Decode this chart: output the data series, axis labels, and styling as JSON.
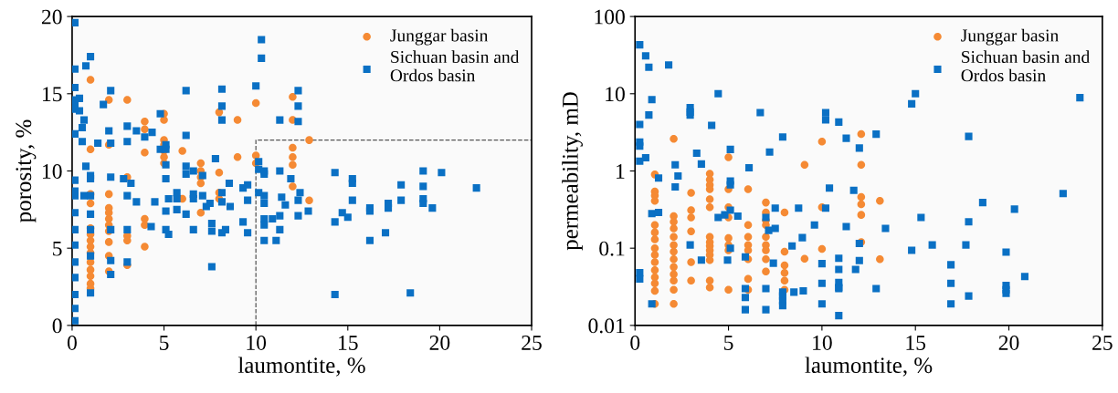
{
  "chart_data": [
    {
      "type": "scatter",
      "xlabel": "laumontite, %",
      "ylabel": "porosity, %",
      "xlim": [
        0,
        25
      ],
      "ylim": [
        0,
        20
      ],
      "xticks": [
        0,
        5,
        10,
        15,
        20,
        25
      ],
      "yticks": [
        0,
        5,
        10,
        15,
        20
      ],
      "grid": false,
      "legend": "top right",
      "series": [
        {
          "name": "Junggar basin",
          "color": "#f58a34",
          "marker": "circle",
          "x": [
            1,
            1,
            1,
            1,
            1,
            1,
            1,
            1,
            1,
            1,
            1,
            1,
            1,
            1,
            2,
            2,
            2,
            2,
            2,
            2,
            2,
            2,
            2,
            2,
            2,
            3,
            3,
            3,
            3,
            3,
            3.95,
            3.95,
            3.95,
            3.95,
            3.95,
            3.95,
            5,
            5,
            5,
            5,
            5,
            5,
            5,
            6,
            6,
            7,
            7,
            7,
            7,
            7,
            8,
            8,
            8,
            8,
            9,
            9,
            10,
            10,
            10,
            12,
            12,
            12,
            12,
            12,
            12,
            12.9,
            12.9
          ],
          "values": [
            15.9,
            11.4,
            8.5,
            7.9,
            6.3,
            5.9,
            5.5,
            5.1,
            4.7,
            4.1,
            3.6,
            3.2,
            2.7,
            2.4,
            14.6,
            11.7,
            8.5,
            7.6,
            7.3,
            6.9,
            6.5,
            6.1,
            5.4,
            4.5,
            3.5,
            14.6,
            9.6,
            5.8,
            5.5,
            3.9,
            13.2,
            12.7,
            11.2,
            6.9,
            6.5,
            5.1,
            13.7,
            13.3,
            12.0,
            11.7,
            11.3,
            10.9,
            10.5,
            11.3,
            8.2,
            10.5,
            10.0,
            9.6,
            9.2,
            7.3,
            13.8,
            9.9,
            8.6,
            8.2,
            13.3,
            10.9,
            14.4,
            11.0,
            10.5,
            14.8,
            13.3,
            11.5,
            10.9,
            10.4,
            9.0,
            12.0,
            8.1
          ]
        },
        {
          "name": "Sichuan basin and Ordos basin",
          "color": "#0a70c4",
          "marker": "square",
          "x": [
            0.15,
            0.15,
            0.15,
            0.15,
            0.15,
            0.15,
            0.15,
            0.15,
            0.15,
            0.15,
            0.15,
            0.15,
            0.15,
            0.15,
            0.15,
            0.15,
            0.15,
            0.15,
            0.4,
            0.4,
            0.55,
            0.55,
            0.65,
            0.65,
            0.75,
            0.75,
            1,
            1,
            1,
            1,
            1,
            1,
            1,
            1,
            1.4,
            1.7,
            2.1,
            2.1,
            2.1,
            2.1,
            2.1,
            2.1,
            2.0,
            2.8,
            3,
            3,
            3,
            3,
            3,
            3.2,
            3.5,
            3.5,
            3.95,
            4.35,
            4.3,
            4.5,
            4.8,
            4.8,
            5.1,
            5.1,
            5.1,
            5.1,
            5.1,
            5.1,
            5.25,
            5.25,
            5.7,
            5.7,
            5.7,
            6.2,
            6.2,
            6.2,
            6.2,
            6.2,
            6.6,
            6.6,
            6.6,
            6.6,
            7.1,
            7.1,
            7.3,
            7.5,
            7.6,
            7.6,
            7.6,
            7.8,
            8.15,
            8.15,
            8.15,
            8.15,
            8.15,
            8.15,
            8.35,
            8.55,
            8.6,
            9.3,
            9.3,
            9.55,
            9.55,
            9.55,
            10.0,
            10.15,
            10.15,
            10.15,
            10.3,
            10.3,
            10.45,
            10.45,
            10.45,
            10.45,
            10.45,
            10.45,
            10.45,
            10.9,
            11.1,
            11.3,
            11.3,
            11.3,
            11.3,
            11.4,
            11.6,
            11.9,
            12.3,
            12.3,
            12.3,
            12.3,
            12.3,
            12.4,
            12.85,
            14.3,
            14.3,
            14.3,
            14.7,
            15.0,
            15.25,
            15.25,
            15.25,
            16.2,
            16.2,
            16.2,
            17.05,
            17.2,
            17.2,
            17.9,
            17.9,
            18.4,
            19.1,
            19.1,
            19.1,
            19.1,
            19.6,
            20.1,
            22.0
          ],
          "values": [
            19.6,
            16.6,
            15.4,
            14.6,
            14.3,
            14.0,
            12.4,
            9.4,
            8.7,
            8.4,
            7.3,
            6.2,
            5.2,
            4.1,
            3.1,
            2.0,
            1.1,
            0.3,
            14.7,
            13.9,
            12.8,
            11.9,
            13.3,
            8.4,
            16.8,
            10.3,
            17.4,
            9.7,
            9.5,
            8.4,
            7.2,
            6.2,
            4.5,
            2.1,
            11.8,
            14.3,
            15.2,
            11.8,
            9.6,
            6.2,
            4.2,
            3.3,
            12.6,
            9.5,
            12.9,
            11.9,
            8.4,
            6.2,
            4.1,
            9.2,
            12.6,
            8.0,
            12.2,
            12.5,
            6.4,
            8.0,
            13.7,
            11.4,
            11.7,
            11.4,
            10.4,
            9.5,
            7.4,
            6.2,
            8.2,
            5.9,
            8.6,
            8.2,
            7.5,
            15.2,
            12.3,
            10.3,
            9.8,
            7.2,
            10.0,
            8.5,
            8.2,
            6.2,
            9.7,
            8.4,
            7.7,
            7.9,
            6.6,
            6.1,
            3.8,
            10.8,
            15.3,
            14.2,
            13.3,
            8.6,
            8.0,
            6.0,
            6.2,
            9.2,
            7.7,
            8.9,
            6.7,
            9.1,
            8.1,
            6.0,
            15.5,
            10.6,
            10.1,
            8.6,
            18.5,
            17.3,
            10.0,
            9.8,
            8.4,
            7.9,
            6.9,
            6.5,
            5.5,
            6.9,
            5.5,
            13.3,
            10.0,
            7.1,
            6.2,
            8.3,
            7.8,
            9.5,
            15.2,
            14.2,
            13.2,
            8.1,
            7.1,
            8.6,
            7.4,
            9.9,
            6.7,
            2.0,
            7.3,
            7.0,
            9.5,
            9.2,
            8.1,
            7.6,
            7.4,
            5.5,
            6.0,
            7.9,
            7.6,
            9.1,
            8.1,
            2.1,
            10.0,
            9.0,
            8.2,
            7.9,
            7.6,
            9.9,
            8.9
          ]
        },
        {
          "type": "line",
          "color": "#555555",
          "line_style": "dashed",
          "marker": "none",
          "x": [
            10,
            10,
            25
          ],
          "values": [
            0,
            12,
            12
          ]
        }
      ]
    },
    {
      "type": "scatter",
      "xlabel": "laumontite, %",
      "ylabel": "permeability, mD",
      "log": "y",
      "xlim": [
        0,
        25
      ],
      "ylim": [
        0.01,
        100
      ],
      "xticks": [
        0,
        5,
        10,
        15,
        20,
        25
      ],
      "yticks": [
        0.01,
        0.1,
        1,
        10,
        100
      ],
      "grid": false,
      "legend": "top right",
      "series": [
        {
          "name": "Junggar basin",
          "color": "#f58a34",
          "marker": "circle",
          "x": [
            1.06,
            1.06,
            1.06,
            1.06,
            1.06,
            1.06,
            1.06,
            1.06,
            1.06,
            1.06,
            1.06,
            1.06,
            1.06,
            1.06,
            1.06,
            2.07,
            2.07,
            2.07,
            2.07,
            2.07,
            2.07,
            2.07,
            2.07,
            2.07,
            2.07,
            2.07,
            2.07,
            2.07,
            3,
            3,
            3,
            3,
            3,
            3,
            4,
            4,
            4,
            4,
            4,
            4,
            4,
            4,
            4,
            4,
            4,
            4,
            4,
            4,
            5,
            5,
            5,
            5,
            5,
            5,
            5,
            5,
            6.05,
            6.05,
            6.05,
            6.05,
            6.05,
            6.05,
            6.05,
            6.05,
            7,
            7,
            7,
            7,
            7,
            7,
            7,
            7,
            7,
            8,
            8,
            8,
            8,
            8,
            8,
            9.07,
            9.07,
            10,
            10,
            10,
            12.1,
            12.1,
            12.1,
            12.1,
            12.1,
            12.1,
            13.1,
            13.1
          ],
          "values": [
            0.9,
            0.54,
            0.48,
            0.41,
            0.2,
            0.16,
            0.13,
            0.1,
            0.082,
            0.066,
            0.052,
            0.042,
            0.035,
            0.028,
            0.019,
            2.6,
            0.26,
            0.22,
            0.18,
            0.14,
            0.11,
            0.09,
            0.072,
            0.057,
            0.046,
            0.038,
            0.029,
            0.019,
            0.52,
            0.31,
            0.25,
            0.165,
            0.066,
            0.038,
            0.92,
            0.77,
            0.66,
            0.58,
            0.43,
            0.34,
            0.14,
            0.12,
            0.107,
            0.094,
            0.082,
            0.07,
            0.038,
            0.031,
            1.5,
            0.58,
            0.34,
            0.25,
            0.135,
            0.11,
            0.094,
            0.029,
            0.58,
            0.2,
            0.14,
            0.11,
            0.094,
            0.072,
            0.04,
            0.029,
            0.39,
            0.29,
            0.23,
            0.2,
            0.14,
            0.11,
            0.094,
            0.072,
            0.05,
            0.29,
            0.09,
            0.06,
            0.048,
            0.038,
            0.029,
            1.2,
            0.073,
            2.4,
            0.34,
            0.098,
            3.0,
            1.2,
            0.46,
            0.37,
            0.27,
            0.12,
            0.41,
            0.072
          ]
        },
        {
          "name": "Sichuan basin and Ordos basin",
          "color": "#0a70c4",
          "marker": "square",
          "x": [
            0.25,
            0.25,
            0.25,
            0.25,
            0.25,
            0.25,
            0.25,
            0.57,
            0.57,
            0.74,
            0.74,
            0.9,
            0.9,
            0.9,
            1.26,
            1.26,
            1.8,
            2.15,
            2.15,
            2.3,
            2.95,
            2.95,
            2.95,
            2.95,
            3.3,
            3.55,
            3.55,
            4.1,
            4.45,
            4.45,
            4.8,
            4.95,
            5.1,
            5.1,
            5.1,
            5.1,
            5.1,
            5.5,
            5.9,
            5.9,
            5.9,
            5.9,
            6.1,
            6.7,
            7,
            7,
            7,
            7.15,
            7.2,
            7.4,
            7.5,
            7.5,
            7.9,
            7.9,
            7.9,
            7.9,
            7.9,
            8.4,
            8.5,
            8.75,
            8.95,
            9.0,
            9.6,
            10,
            10,
            10,
            10.2,
            10.2,
            10.2,
            10.4,
            10.9,
            10.9,
            10.9,
            10.9,
            10.9,
            10.9,
            10.9,
            11.3,
            11.3,
            11.7,
            11.8,
            12,
            12,
            12,
            12.9,
            12.9,
            13.4,
            14.8,
            14.8,
            15.0,
            15.3,
            15.9,
            16.9,
            16.9,
            16.9,
            17.7,
            17.85,
            17.85,
            17.85,
            18.6,
            19.85,
            19.85,
            19.85,
            19.85,
            20.3,
            20.85,
            22.9,
            23.8
          ],
          "values": [
            43,
            4.0,
            2.37,
            2.1,
            1.34,
            0.048,
            0.04,
            31,
            1.48,
            22,
            5.3,
            8.4,
            0.28,
            0.019,
            0.29,
            0.81,
            23.6,
            1.2,
            0.62,
            0.86,
            6.6,
            5.8,
            5.3,
            0.11,
            1.7,
            1.23,
            0.07,
            3.9,
            10,
            0.25,
            0.27,
            0.07,
            1.9,
            0.74,
            0.66,
            0.31,
            0.1,
            0.26,
            0.077,
            0.03,
            0.023,
            0.016,
            1.1,
            5.7,
            0.25,
            0.03,
            0.016,
            0.17,
            1.76,
            0.064,
            0.33,
            0.18,
            2.75,
            0.027,
            0.024,
            0.021,
            0.018,
            0.107,
            0.027,
            0.33,
            0.137,
            0.028,
            0.2,
            0.063,
            0.035,
            0.019,
            5.7,
            4.6,
            0.33,
            0.6,
            4.3,
            0.074,
            0.053,
            0.036,
            0.031,
            0.03,
            0.0134,
            2.65,
            0.19,
            0.56,
            0.053,
            1.98,
            0.115,
            0.069,
            3.0,
            0.03,
            0.18,
            7.4,
            0.094,
            10,
            0.25,
            0.11,
            0.061,
            0.035,
            0.019,
            0.11,
            2.8,
            0.22,
            0.024,
            0.39,
            0.089,
            0.033,
            0.029,
            0.026,
            0.32,
            0.043,
            0.51,
            8.9
          ]
        }
      ]
    }
  ]
}
